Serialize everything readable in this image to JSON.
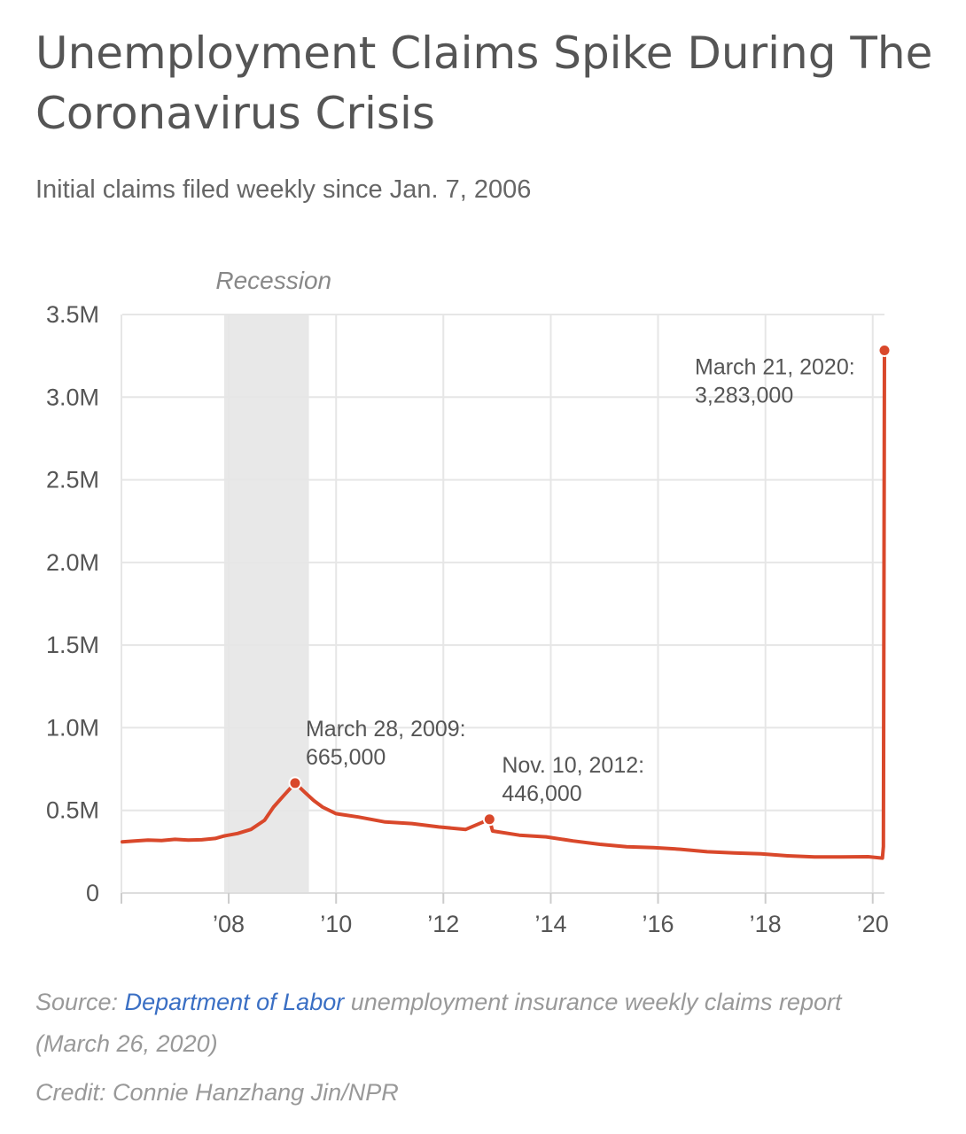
{
  "title": "Unemployment Claims Spike During The Coronavirus Crisis",
  "subtitle": "Initial claims filed weekly since Jan. 7, 2006",
  "source": {
    "prefix": "Source:",
    "link_text": "Department of Labor",
    "rest": "unemployment insurance weekly claims report",
    "date": "(March 26, 2020)"
  },
  "credit": "Credit: Connie Hanzhang Jin/NPR",
  "colors": {
    "line": "#d9482b",
    "recession": "#e8e8e8",
    "grid": "#e6e6e6",
    "axis_text": "#555555",
    "annotation_text": "#555555",
    "recession_label": "#888888",
    "link": "#3a6fc4"
  },
  "chart_data": {
    "type": "line",
    "x_axis": {
      "type": "date",
      "range": [
        "2006-01-07",
        "2020-03-21"
      ],
      "ticks": [
        {
          "date": "2006-01-01",
          "label": ""
        },
        {
          "date": "2008-01-01",
          "label": "’08"
        },
        {
          "date": "2010-01-01",
          "label": "’10"
        },
        {
          "date": "2012-01-01",
          "label": "’12"
        },
        {
          "date": "2014-01-01",
          "label": "’14"
        },
        {
          "date": "2016-01-01",
          "label": "’16"
        },
        {
          "date": "2018-01-01",
          "label": "’18"
        },
        {
          "date": "2020-01-01",
          "label": "’20"
        }
      ]
    },
    "y_axis": {
      "range": [
        0,
        3500000
      ],
      "ticks": [
        {
          "value": 0,
          "label": "0"
        },
        {
          "value": 500000,
          "label": "0.5M"
        },
        {
          "value": 1000000,
          "label": "1.0M"
        },
        {
          "value": 1500000,
          "label": "1.5M"
        },
        {
          "value": 2000000,
          "label": "2.0M"
        },
        {
          "value": 2500000,
          "label": "2.5M"
        },
        {
          "value": 3000000,
          "label": "3.0M"
        },
        {
          "value": 3500000,
          "label": "3.5M"
        }
      ]
    },
    "grid": true,
    "recession": {
      "label": "Recession",
      "start": "2007-12-01",
      "end": "2009-06-30"
    },
    "series": [
      {
        "points": [
          [
            "2006-01-07",
            310000
          ],
          [
            "2006-04-01",
            315000
          ],
          [
            "2006-07-01",
            320000
          ],
          [
            "2006-10-01",
            318000
          ],
          [
            "2007-01-01",
            325000
          ],
          [
            "2007-04-01",
            320000
          ],
          [
            "2007-07-01",
            322000
          ],
          [
            "2007-10-01",
            330000
          ],
          [
            "2007-12-01",
            345000
          ],
          [
            "2008-03-01",
            360000
          ],
          [
            "2008-06-01",
            385000
          ],
          [
            "2008-09-01",
            440000
          ],
          [
            "2008-11-01",
            520000
          ],
          [
            "2009-01-10",
            590000
          ],
          [
            "2009-03-28",
            665000
          ],
          [
            "2009-06-01",
            610000
          ],
          [
            "2009-08-01",
            560000
          ],
          [
            "2009-10-01",
            520000
          ],
          [
            "2010-01-01",
            480000
          ],
          [
            "2010-06-01",
            460000
          ],
          [
            "2010-12-01",
            430000
          ],
          [
            "2011-06-01",
            420000
          ],
          [
            "2011-12-01",
            400000
          ],
          [
            "2012-06-01",
            385000
          ],
          [
            "2012-11-10",
            446000
          ],
          [
            "2012-12-01",
            375000
          ],
          [
            "2013-06-01",
            350000
          ],
          [
            "2013-12-01",
            340000
          ],
          [
            "2014-06-01",
            315000
          ],
          [
            "2014-12-01",
            295000
          ],
          [
            "2015-06-01",
            280000
          ],
          [
            "2015-12-01",
            275000
          ],
          [
            "2016-06-01",
            265000
          ],
          [
            "2016-12-01",
            250000
          ],
          [
            "2017-06-01",
            243000
          ],
          [
            "2017-12-01",
            237000
          ],
          [
            "2018-06-01",
            225000
          ],
          [
            "2018-12-01",
            218000
          ],
          [
            "2019-06-01",
            218000
          ],
          [
            "2019-12-01",
            220000
          ],
          [
            "2020-03-07",
            211000
          ],
          [
            "2020-03-14",
            282000
          ],
          [
            "2020-03-21",
            3283000
          ]
        ]
      }
    ],
    "annotations": [
      {
        "date": "2009-03-28",
        "value": 665000,
        "lines": [
          "March 28, 2009:",
          "665,000"
        ]
      },
      {
        "date": "2012-11-10",
        "value": 446000,
        "lines": [
          "Nov. 10, 2012:",
          "446,000"
        ]
      },
      {
        "date": "2020-03-21",
        "value": 3283000,
        "lines": [
          "March 21, 2020:",
          "3,283,000"
        ]
      }
    ]
  }
}
